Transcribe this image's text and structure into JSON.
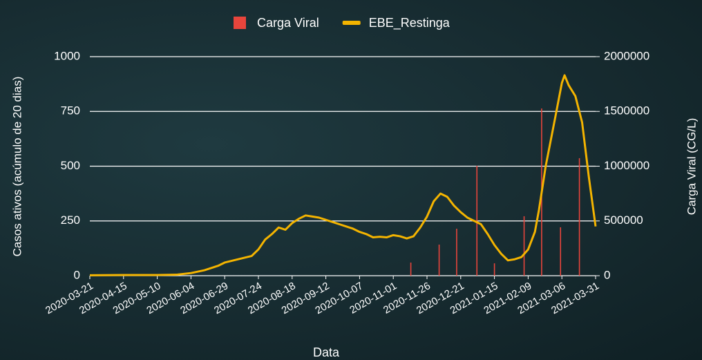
{
  "chart_data": {
    "type": "bar-line",
    "xlabel": "Data",
    "ylabel": "Casos ativos (acúmulo de 20 dias)",
    "y2label": "Carga Viral (CG/L)",
    "xlim": [
      "2020-03-21",
      "2021-03-31"
    ],
    "xticks": [
      "2020-03-21",
      "2020-04-15",
      "2020-05-10",
      "2020-06-04",
      "2020-06-29",
      "2020-07-24",
      "2020-08-18",
      "2020-09-12",
      "2020-10-07",
      "2020-11-01",
      "2020-11-26",
      "2020-12-21",
      "2021-01-15",
      "2021-02-09",
      "2021-03-06",
      "2021-03-31"
    ],
    "ylim": [
      0,
      1000
    ],
    "yticks": [
      0,
      250,
      500,
      750,
      1000
    ],
    "y2lim": [
      0,
      2000000
    ],
    "y2ticks": [
      0,
      500000,
      1000000,
      1500000,
      2000000
    ],
    "grid": true,
    "legend": "top",
    "series": [
      {
        "name": "Carga Viral",
        "type": "bar",
        "axis": "y2",
        "color": "#e8453c",
        "x": [
          "2020-11-14",
          "2020-12-05",
          "2020-12-18",
          "2021-01-02",
          "2021-01-15",
          "2021-02-06",
          "2021-02-19",
          "2021-03-05",
          "2021-03-19"
        ],
        "values": [
          120000,
          284000,
          429000,
          1003000,
          113000,
          543000,
          1527000,
          442000,
          1073000
        ]
      },
      {
        "name": "EBE_Restinga",
        "type": "line",
        "color": "#f4b400",
        "x": [
          "2020-03-21",
          "2020-04-15",
          "2020-05-10",
          "2020-05-25",
          "2020-06-04",
          "2020-06-14",
          "2020-06-24",
          "2020-06-29",
          "2020-07-09",
          "2020-07-19",
          "2020-07-24",
          "2020-07-29",
          "2020-08-03",
          "2020-08-08",
          "2020-08-13",
          "2020-08-18",
          "2020-08-23",
          "2020-08-28",
          "2020-09-02",
          "2020-09-07",
          "2020-09-12",
          "2020-09-17",
          "2020-09-22",
          "2020-09-27",
          "2020-10-02",
          "2020-10-07",
          "2020-10-12",
          "2020-10-17",
          "2020-10-22",
          "2020-10-27",
          "2020-11-01",
          "2020-11-06",
          "2020-11-11",
          "2020-11-16",
          "2020-11-21",
          "2020-11-26",
          "2020-12-01",
          "2020-12-06",
          "2020-12-11",
          "2020-12-16",
          "2020-12-21",
          "2020-12-26",
          "2020-12-31",
          "2021-01-05",
          "2021-01-10",
          "2021-01-15",
          "2021-01-20",
          "2021-01-25",
          "2021-01-30",
          "2021-02-04",
          "2021-02-09",
          "2021-02-14",
          "2021-02-17",
          "2021-02-22",
          "2021-03-01",
          "2021-03-06",
          "2021-03-08",
          "2021-03-11",
          "2021-03-16",
          "2021-03-21",
          "2021-03-26",
          "2021-03-31"
        ],
        "values": [
          2,
          3,
          3,
          5,
          12,
          25,
          45,
          60,
          75,
          90,
          120,
          165,
          190,
          220,
          210,
          240,
          260,
          275,
          270,
          265,
          255,
          245,
          235,
          225,
          215,
          200,
          190,
          175,
          178,
          175,
          185,
          180,
          170,
          180,
          220,
          270,
          340,
          375,
          360,
          320,
          290,
          265,
          250,
          235,
          190,
          140,
          100,
          70,
          75,
          85,
          120,
          200,
          300,
          500,
          720,
          880,
          915,
          870,
          820,
          700,
          450,
          225
        ]
      }
    ]
  }
}
